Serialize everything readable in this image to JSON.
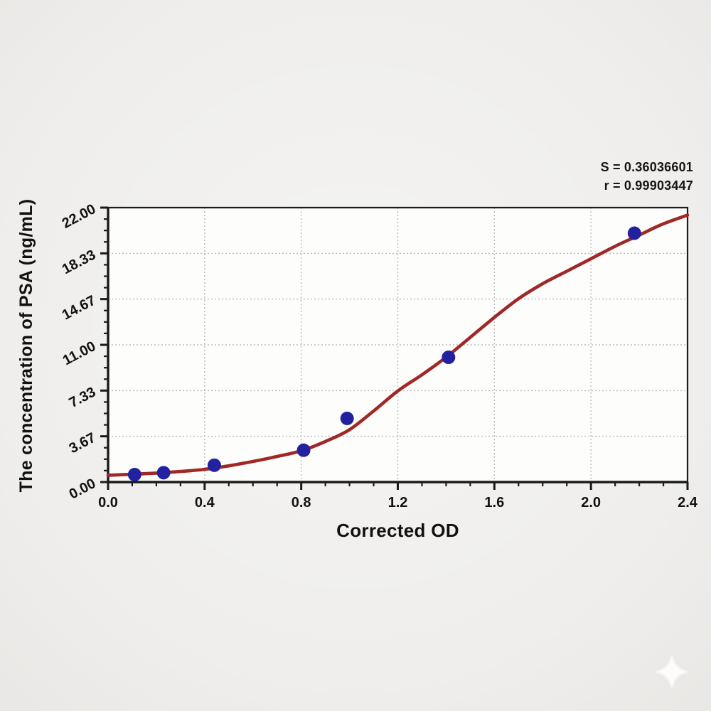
{
  "page": {
    "background_color": "#efeeec",
    "plot_background_color": "#fdfdfc"
  },
  "annotations": {
    "s_label": "S = 0.36036601",
    "r_label": "r = 0.99903447"
  },
  "chart_data": {
    "type": "scatter",
    "title": "",
    "xlabel": "Corrected OD",
    "ylabel": "The concentration of PSA (ng/mL)",
    "xlim": [
      0,
      2.4
    ],
    "ylim": [
      0,
      22
    ],
    "x_ticks": [
      0.0,
      0.4,
      0.8,
      1.2,
      1.6,
      2.0,
      2.4
    ],
    "x_tick_labels": [
      "0.0",
      "0.4",
      "0.8",
      "1.2",
      "1.6",
      "2.0",
      "2.4"
    ],
    "x_minor_step": 0.1,
    "y_ticks": [
      0.0,
      3.67,
      7.33,
      11.0,
      14.67,
      18.33,
      22.0
    ],
    "y_tick_labels": [
      "0.00",
      "3.67",
      "7.33",
      "11.00",
      "14.67",
      "18.33",
      "22.00"
    ],
    "y_minor_divisions": 4,
    "grid": {
      "show": true,
      "style": "dotted",
      "color": "#bcbcbc",
      "on_major_ticks": true
    },
    "legend": null,
    "stats": {
      "S": "0.36036601",
      "r": "0.99903447"
    },
    "series": [
      {
        "name": "standard-points",
        "type": "scatter",
        "color": "#22219f",
        "marker": "circle",
        "points": [
          [
            0.11,
            0.6
          ],
          [
            0.23,
            0.75
          ],
          [
            0.44,
            1.35
          ],
          [
            0.81,
            2.55
          ],
          [
            0.99,
            5.1
          ],
          [
            1.41,
            10.0
          ],
          [
            2.18,
            19.95
          ]
        ]
      },
      {
        "name": "fitted-curve",
        "type": "line",
        "color": "#9f2927",
        "points": [
          [
            0.0,
            0.55
          ],
          [
            0.1,
            0.62
          ],
          [
            0.2,
            0.72
          ],
          [
            0.3,
            0.85
          ],
          [
            0.4,
            1.02
          ],
          [
            0.5,
            1.3
          ],
          [
            0.6,
            1.65
          ],
          [
            0.7,
            2.05
          ],
          [
            0.8,
            2.5
          ],
          [
            0.9,
            3.25
          ],
          [
            1.0,
            4.2
          ],
          [
            1.1,
            5.7
          ],
          [
            1.2,
            7.3
          ],
          [
            1.3,
            8.6
          ],
          [
            1.4,
            10.0
          ],
          [
            1.5,
            11.6
          ],
          [
            1.6,
            13.2
          ],
          [
            1.7,
            14.7
          ],
          [
            1.8,
            15.9
          ],
          [
            1.9,
            16.9
          ],
          [
            2.0,
            17.9
          ],
          [
            2.1,
            18.9
          ],
          [
            2.2,
            19.8
          ],
          [
            2.3,
            20.7
          ],
          [
            2.4,
            21.4
          ]
        ]
      }
    ],
    "colors": {
      "axis": "#1b1b1b",
      "text": "#121212",
      "curve": "#9f2927",
      "points": "#22219f",
      "grid": "#bcbcbc",
      "plot_bg": "#fdfdfc"
    }
  },
  "watermark": {
    "icon": "sparkle"
  }
}
